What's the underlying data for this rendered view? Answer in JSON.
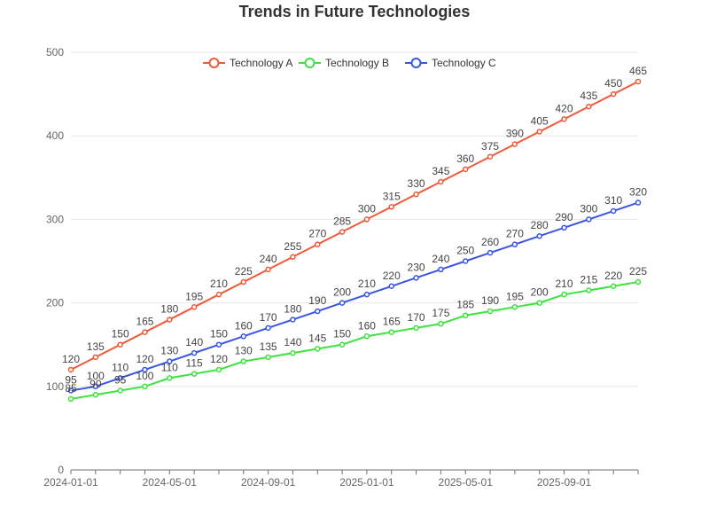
{
  "chart_data": {
    "type": "line",
    "title": "Trends in Future Technologies",
    "xlabel": "",
    "ylabel": "",
    "ylim": [
      0,
      500
    ],
    "y_ticks": [
      "0",
      "100",
      "200",
      "300",
      "400",
      "500"
    ],
    "x_tick_labels": [
      "2024-01-01",
      "2024-05-01",
      "2024-09-01",
      "2025-01-01",
      "2025-05-01",
      "2025-09-01"
    ],
    "x_tick_indices": [
      0,
      4,
      8,
      12,
      16,
      20
    ],
    "x": [
      "2024-01",
      "2024-02",
      "2024-03",
      "2024-04",
      "2024-05",
      "2024-06",
      "2024-07",
      "2024-08",
      "2024-09",
      "2024-10",
      "2024-11",
      "2024-12",
      "2025-01",
      "2025-02",
      "2025-03",
      "2025-04",
      "2025-05",
      "2025-06",
      "2025-07",
      "2025-08",
      "2025-09",
      "2025-10",
      "2025-11",
      "2025-12"
    ],
    "grid": true,
    "legend_position": "top",
    "series": [
      {
        "name": "Technology A",
        "color": "#ee5a3a",
        "values": [
          120,
          135,
          150,
          165,
          180,
          195,
          210,
          225,
          240,
          255,
          270,
          285,
          300,
          315,
          330,
          345,
          360,
          375,
          390,
          405,
          420,
          435,
          450,
          465
        ]
      },
      {
        "name": "Technology B",
        "color": "#3de33d",
        "values": [
          85,
          90,
          95,
          100,
          110,
          115,
          120,
          130,
          135,
          140,
          145,
          150,
          160,
          165,
          170,
          175,
          185,
          190,
          195,
          200,
          210,
          215,
          220,
          225
        ]
      },
      {
        "name": "Technology C",
        "color": "#3a55e3",
        "values": [
          95,
          100,
          110,
          120,
          130,
          140,
          150,
          160,
          170,
          180,
          190,
          200,
          210,
          220,
          230,
          240,
          250,
          260,
          270,
          280,
          290,
          300,
          310,
          320
        ]
      }
    ]
  }
}
